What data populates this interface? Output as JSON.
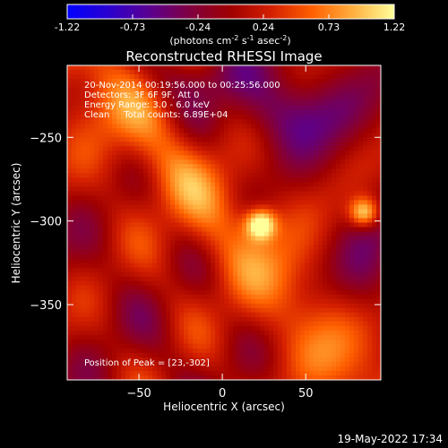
{
  "colorbar": {
    "ticks": [
      "-1.22",
      "-0.73",
      "-0.24",
      "0.24",
      "0.73",
      "1.22"
    ],
    "min": -1.22,
    "max": 1.22,
    "label_main": "(photons cm",
    "label_exp1": "-2",
    "label_s": " s",
    "label_exp2": "-1",
    "label_asec": " asec",
    "label_exp3": "-2",
    "label_close": ")",
    "colormap": [
      "#0000ff",
      "#2a00d0",
      "#5a0090",
      "#800040",
      "#a00000",
      "#d42000",
      "#ff6000",
      "#ffb040",
      "#ffff9a"
    ]
  },
  "chart_data": {
    "type": "heatmap",
    "title": "Reconstructed RHESSI Image",
    "xlabel": "Heliocentric X (arcsec)",
    "ylabel": "Heliocentric Y (arcsec)",
    "xlim": [
      -93,
      95
    ],
    "ylim": [
      -395,
      -207
    ],
    "xticks": [
      -50,
      0,
      50
    ],
    "yticks": [
      -250,
      -300,
      -350
    ],
    "grid": false,
    "sources": [
      {
        "x": 23,
        "y": -302,
        "peak": 1.22
      },
      {
        "x": 85,
        "y": -295,
        "peak": 1.1
      }
    ],
    "annotations": [
      "20-Nov-2014 00:19:56.000 to 00:25:56.000",
      "Detectors: 3F 6F 9F, Att 0",
      "Energy Range: 3.0 - 6.0 keV",
      "Clean     Total counts: 6.89E+04"
    ],
    "peak_label": "Position of Peak = [23,-302]"
  },
  "footer": {
    "timestamp": "19-May-2022 17:34"
  }
}
